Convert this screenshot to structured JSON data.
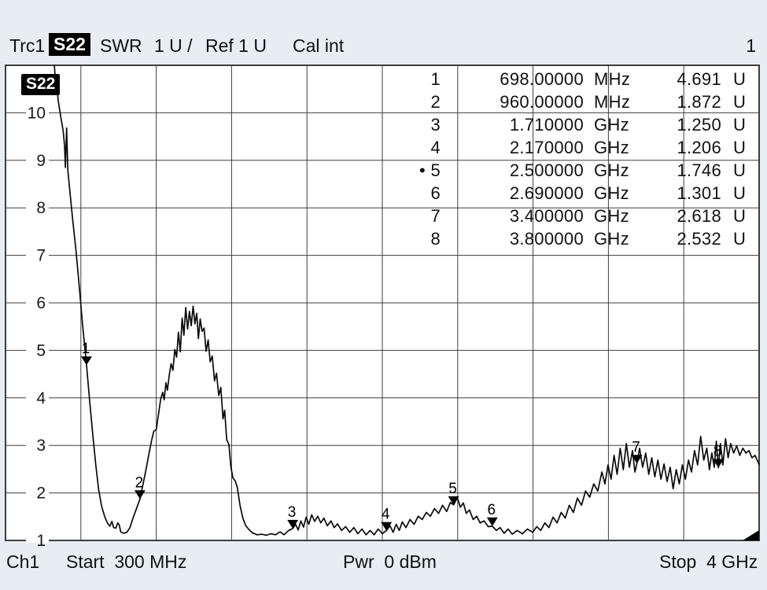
{
  "header": {
    "trace_label": "Trc1",
    "param": "S22",
    "format": "SWR",
    "scale": "1 U /",
    "ref": "Ref 1 U",
    "cal": "Cal int",
    "window_number": "1"
  },
  "plot": {
    "badge": "S22",
    "y_axis_labels": [
      1,
      2,
      3,
      4,
      5,
      6,
      7,
      8,
      9,
      10
    ]
  },
  "footer": {
    "channel": "Ch1",
    "start": "Start  300 MHz",
    "power": "Pwr  0 dBm",
    "stop": "Stop  4 GHz"
  },
  "colors": {
    "background": "#e8edf3",
    "plot_background": "#ffffff",
    "grid": "#3e3e3e",
    "trace": "#0a0a0a",
    "badge_bg": "#000000",
    "badge_text": "#ffffff"
  },
  "chart_data": {
    "type": "line",
    "title": "Trc1 S22 SWR 1 U / Ref 1 U Cal int",
    "xlabel": "Frequency (Start 300 MHz to Stop 4 GHz)",
    "ylabel": "SWR (U)",
    "x_start_ghz": 0.3,
    "x_stop_ghz": 4.0,
    "ylim": [
      1,
      11
    ],
    "x_divisions": 10,
    "y_divisions": 10,
    "grid": true,
    "legend_position": "none",
    "markers": [
      {
        "num": "1",
        "freq": "698.00000",
        "freq_unit": "MHz",
        "value": "4.691",
        "value_unit": "U",
        "f_ghz": 0.698,
        "swr": 4.691,
        "active": false
      },
      {
        "num": "2",
        "freq": "960.00000",
        "freq_unit": "MHz",
        "value": "1.872",
        "value_unit": "U",
        "f_ghz": 0.96,
        "swr": 1.872,
        "active": false
      },
      {
        "num": "3",
        "freq": "1.710000",
        "freq_unit": "GHz",
        "value": "1.250",
        "value_unit": "U",
        "f_ghz": 1.71,
        "swr": 1.25,
        "active": false
      },
      {
        "num": "4",
        "freq": "2.170000",
        "freq_unit": "GHz",
        "value": "1.206",
        "value_unit": "U",
        "f_ghz": 2.17,
        "swr": 1.206,
        "active": false
      },
      {
        "num": "5",
        "freq": "2.500000",
        "freq_unit": "GHz",
        "value": "1.746",
        "value_unit": "U",
        "f_ghz": 2.5,
        "swr": 1.746,
        "active": true
      },
      {
        "num": "6",
        "freq": "2.690000",
        "freq_unit": "GHz",
        "value": "1.301",
        "value_unit": "U",
        "f_ghz": 2.69,
        "swr": 1.301,
        "active": false
      },
      {
        "num": "7",
        "freq": "3.400000",
        "freq_unit": "GHz",
        "value": "2.618",
        "value_unit": "U",
        "f_ghz": 3.4,
        "swr": 2.618,
        "active": false
      },
      {
        "num": "8",
        "freq": "3.800000",
        "freq_unit": "GHz",
        "value": "2.532",
        "value_unit": "U",
        "f_ghz": 3.8,
        "swr": 2.532,
        "active": false
      }
    ],
    "series": [
      {
        "name": "Trc1 S22 SWR",
        "points_f_ghz_swr": [
          [
            0.54,
            11.0
          ],
          [
            0.545,
            10.7
          ],
          [
            0.549,
            10.5
          ],
          [
            0.553,
            10.62
          ],
          [
            0.558,
            10.28
          ],
          [
            0.57,
            9.95
          ],
          [
            0.583,
            9.62
          ],
          [
            0.59,
            9.3
          ],
          [
            0.594,
            8.85
          ],
          [
            0.6,
            9.68
          ],
          [
            0.606,
            8.8
          ],
          [
            0.617,
            8.3
          ],
          [
            0.63,
            7.75
          ],
          [
            0.645,
            7.15
          ],
          [
            0.66,
            6.45
          ],
          [
            0.678,
            5.55
          ],
          [
            0.698,
            4.69
          ],
          [
            0.713,
            3.95
          ],
          [
            0.728,
            3.25
          ],
          [
            0.743,
            2.6
          ],
          [
            0.757,
            2.08
          ],
          [
            0.772,
            1.72
          ],
          [
            0.787,
            1.5
          ],
          [
            0.8,
            1.37
          ],
          [
            0.812,
            1.3
          ],
          [
            0.822,
            1.4
          ],
          [
            0.831,
            1.27
          ],
          [
            0.842,
            1.26
          ],
          [
            0.851,
            1.37
          ],
          [
            0.858,
            1.33
          ],
          [
            0.866,
            1.18
          ],
          [
            0.88,
            1.15
          ],
          [
            0.895,
            1.17
          ],
          [
            0.91,
            1.26
          ],
          [
            0.927,
            1.48
          ],
          [
            0.944,
            1.68
          ],
          [
            0.96,
            1.87
          ],
          [
            0.975,
            2.18
          ],
          [
            0.99,
            2.5
          ],
          [
            1.004,
            2.82
          ],
          [
            1.018,
            3.12
          ],
          [
            1.028,
            3.3
          ],
          [
            1.04,
            3.33
          ],
          [
            1.052,
            3.68
          ],
          [
            1.062,
            3.98
          ],
          [
            1.072,
            4.12
          ],
          [
            1.079,
            3.96
          ],
          [
            1.088,
            4.32
          ],
          [
            1.095,
            4.16
          ],
          [
            1.104,
            4.48
          ],
          [
            1.113,
            4.72
          ],
          [
            1.122,
            4.58
          ],
          [
            1.131,
            5.02
          ],
          [
            1.14,
            4.86
          ],
          [
            1.149,
            5.38
          ],
          [
            1.158,
            4.97
          ],
          [
            1.167,
            5.68
          ],
          [
            1.176,
            5.32
          ],
          [
            1.185,
            5.9
          ],
          [
            1.194,
            5.45
          ],
          [
            1.203,
            5.82
          ],
          [
            1.212,
            5.52
          ],
          [
            1.221,
            5.93
          ],
          [
            1.23,
            5.56
          ],
          [
            1.239,
            5.78
          ],
          [
            1.247,
            5.25
          ],
          [
            1.256,
            5.66
          ],
          [
            1.265,
            5.4
          ],
          [
            1.275,
            5.47
          ],
          [
            1.285,
            4.98
          ],
          [
            1.295,
            5.22
          ],
          [
            1.305,
            4.76
          ],
          [
            1.315,
            4.88
          ],
          [
            1.326,
            4.36
          ],
          [
            1.336,
            4.52
          ],
          [
            1.347,
            4.05
          ],
          [
            1.357,
            4.22
          ],
          [
            1.368,
            3.56
          ],
          [
            1.376,
            3.74
          ],
          [
            1.386,
            3.12
          ],
          [
            1.397,
            3.02
          ],
          [
            1.406,
            2.56
          ],
          [
            1.416,
            2.32
          ],
          [
            1.428,
            2.25
          ],
          [
            1.438,
            2.12
          ],
          [
            1.452,
            1.72
          ],
          [
            1.466,
            1.46
          ],
          [
            1.48,
            1.31
          ],
          [
            1.495,
            1.23
          ],
          [
            1.512,
            1.16
          ],
          [
            1.535,
            1.12
          ],
          [
            1.558,
            1.13
          ],
          [
            1.58,
            1.11
          ],
          [
            1.603,
            1.14
          ],
          [
            1.625,
            1.12
          ],
          [
            1.648,
            1.18
          ],
          [
            1.668,
            1.12
          ],
          [
            1.69,
            1.21
          ],
          [
            1.71,
            1.25
          ],
          [
            1.724,
            1.34
          ],
          [
            1.737,
            1.22
          ],
          [
            1.75,
            1.41
          ],
          [
            1.763,
            1.28
          ],
          [
            1.776,
            1.49
          ],
          [
            1.789,
            1.34
          ],
          [
            1.803,
            1.54
          ],
          [
            1.818,
            1.4
          ],
          [
            1.833,
            1.51
          ],
          [
            1.848,
            1.37
          ],
          [
            1.863,
            1.47
          ],
          [
            1.88,
            1.31
          ],
          [
            1.898,
            1.41
          ],
          [
            1.914,
            1.27
          ],
          [
            1.93,
            1.35
          ],
          [
            1.95,
            1.21
          ],
          [
            1.97,
            1.29
          ],
          [
            1.99,
            1.17
          ],
          [
            2.01,
            1.27
          ],
          [
            2.03,
            1.14
          ],
          [
            2.05,
            1.24
          ],
          [
            2.07,
            1.12
          ],
          [
            2.09,
            1.21
          ],
          [
            2.11,
            1.12
          ],
          [
            2.13,
            1.24
          ],
          [
            2.15,
            1.14
          ],
          [
            2.17,
            1.21
          ],
          [
            2.188,
            1.31
          ],
          [
            2.203,
            1.17
          ],
          [
            2.218,
            1.34
          ],
          [
            2.233,
            1.21
          ],
          [
            2.248,
            1.39
          ],
          [
            2.266,
            1.27
          ],
          [
            2.286,
            1.44
          ],
          [
            2.306,
            1.34
          ],
          [
            2.326,
            1.51
          ],
          [
            2.346,
            1.44
          ],
          [
            2.366,
            1.59
          ],
          [
            2.386,
            1.51
          ],
          [
            2.406,
            1.67
          ],
          [
            2.426,
            1.57
          ],
          [
            2.446,
            1.74
          ],
          [
            2.466,
            1.61
          ],
          [
            2.484,
            1.8
          ],
          [
            2.5,
            1.75
          ],
          [
            2.518,
            1.9
          ],
          [
            2.533,
            1.7
          ],
          [
            2.548,
            1.79
          ],
          [
            2.562,
            1.57
          ],
          [
            2.578,
            1.64
          ],
          [
            2.596,
            1.44
          ],
          [
            2.613,
            1.51
          ],
          [
            2.63,
            1.37
          ],
          [
            2.65,
            1.41
          ],
          [
            2.67,
            1.29
          ],
          [
            2.69,
            1.3
          ],
          [
            2.71,
            1.21
          ],
          [
            2.728,
            1.27
          ],
          [
            2.748,
            1.15
          ],
          [
            2.768,
            1.24
          ],
          [
            2.788,
            1.13
          ],
          [
            2.812,
            1.21
          ],
          [
            2.838,
            1.14
          ],
          [
            2.862,
            1.24
          ],
          [
            2.888,
            1.17
          ],
          [
            2.908,
            1.29
          ],
          [
            2.928,
            1.21
          ],
          [
            2.948,
            1.37
          ],
          [
            2.968,
            1.27
          ],
          [
            2.988,
            1.49
          ],
          [
            3.008,
            1.37
          ],
          [
            3.028,
            1.59
          ],
          [
            3.048,
            1.47
          ],
          [
            3.068,
            1.74
          ],
          [
            3.088,
            1.59
          ],
          [
            3.108,
            1.89
          ],
          [
            3.128,
            1.74
          ],
          [
            3.148,
            2.04
          ],
          [
            3.168,
            1.91
          ],
          [
            3.188,
            2.19
          ],
          [
            3.208,
            2.04
          ],
          [
            3.228,
            2.44
          ],
          [
            3.243,
            2.19
          ],
          [
            3.258,
            2.59
          ],
          [
            3.273,
            2.29
          ],
          [
            3.288,
            2.79
          ],
          [
            3.303,
            2.39
          ],
          [
            3.318,
            2.94
          ],
          [
            3.333,
            2.49
          ],
          [
            3.348,
            3.04
          ],
          [
            3.363,
            2.54
          ],
          [
            3.378,
            2.89
          ],
          [
            3.39,
            2.44
          ],
          [
            3.4,
            2.62
          ],
          [
            3.413,
            2.94
          ],
          [
            3.428,
            2.54
          ],
          [
            3.443,
            2.84
          ],
          [
            3.458,
            2.39
          ],
          [
            3.473,
            2.74
          ],
          [
            3.488,
            2.34
          ],
          [
            3.503,
            2.69
          ],
          [
            3.518,
            2.29
          ],
          [
            3.533,
            2.61
          ],
          [
            3.548,
            2.24
          ],
          [
            3.563,
            2.54
          ],
          [
            3.578,
            2.09
          ],
          [
            3.593,
            2.49
          ],
          [
            3.608,
            2.19
          ],
          [
            3.623,
            2.59
          ],
          [
            3.638,
            2.29
          ],
          [
            3.653,
            2.69
          ],
          [
            3.668,
            2.44
          ],
          [
            3.683,
            2.89
          ],
          [
            3.698,
            2.59
          ],
          [
            3.713,
            3.19
          ],
          [
            3.728,
            2.69
          ],
          [
            3.743,
            2.94
          ],
          [
            3.756,
            2.49
          ],
          [
            3.768,
            2.84
          ],
          [
            3.78,
            2.54
          ],
          [
            3.79,
            3.09
          ],
          [
            3.8,
            2.53
          ],
          [
            3.81,
            3.04
          ],
          [
            3.822,
            2.59
          ],
          [
            3.835,
            3.14
          ],
          [
            3.848,
            2.74
          ],
          [
            3.86,
            3.04
          ],
          [
            3.875,
            2.84
          ],
          [
            3.89,
            2.99
          ],
          [
            3.905,
            2.79
          ],
          [
            3.92,
            2.94
          ],
          [
            3.935,
            2.84
          ],
          [
            3.95,
            2.89
          ],
          [
            3.965,
            2.74
          ],
          [
            3.98,
            2.79
          ],
          [
            4.0,
            2.6
          ]
        ]
      }
    ]
  }
}
